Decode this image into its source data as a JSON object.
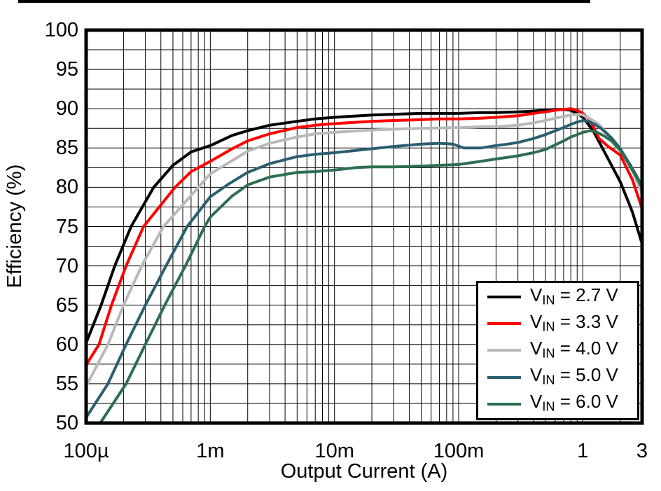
{
  "figure": {
    "xlabel": "Output Current (A)",
    "ylabel": "Efficiency (%)"
  },
  "chart_data": {
    "type": "line",
    "title": "",
    "xlabel": "Output Current (A)",
    "ylabel": "Efficiency (%)",
    "x_scale": "log",
    "xlim": [
      0.0001,
      3
    ],
    "ylim": [
      50,
      100
    ],
    "y_major_step": 5,
    "y_minor_step": 2.5,
    "grid": true,
    "frame_color": "#000000",
    "grid_color": "#000000",
    "legend_position": "bottom-right",
    "x_ticks": [
      {
        "value": 0.0001,
        "label": "100µ"
      },
      {
        "value": 0.001,
        "label": "1m"
      },
      {
        "value": 0.01,
        "label": "10m"
      },
      {
        "value": 0.1,
        "label": "100m"
      },
      {
        "value": 1,
        "label": "1"
      },
      {
        "value": 3,
        "label": "3"
      }
    ],
    "y_ticks": [
      100,
      95,
      90,
      85,
      80,
      75,
      70,
      65,
      60,
      55,
      50
    ],
    "series": [
      {
        "name": "VIN = 2.7 V",
        "label": {
          "pre": "V",
          "sub": "IN",
          "post": " = 2.7 V"
        },
        "color": "#000000",
        "points": [
          [
            0.0001,
            60.2
          ],
          [
            0.000132,
            65
          ],
          [
            0.00017,
            70
          ],
          [
            0.00023,
            75
          ],
          [
            0.00035,
            80
          ],
          [
            0.0005,
            82.8
          ],
          [
            0.0007,
            84.5
          ],
          [
            0.001,
            85.3
          ],
          [
            0.0015,
            86.6
          ],
          [
            0.002,
            87.2
          ],
          [
            0.003,
            87.9
          ],
          [
            0.005,
            88.4
          ],
          [
            0.007,
            88.7
          ],
          [
            0.01,
            88.9
          ],
          [
            0.02,
            89.2
          ],
          [
            0.03,
            89.3
          ],
          [
            0.05,
            89.4
          ],
          [
            0.07,
            89.4
          ],
          [
            0.1,
            89.4
          ],
          [
            0.15,
            89.5
          ],
          [
            0.2,
            89.5
          ],
          [
            0.3,
            89.6
          ],
          [
            0.4,
            89.7
          ],
          [
            0.5,
            89.8
          ],
          [
            0.6,
            89.9
          ],
          [
            0.7,
            89.9
          ],
          [
            0.8,
            89.8
          ],
          [
            0.9,
            89.4
          ],
          [
            1,
            88.9
          ],
          [
            1.2,
            87.3
          ],
          [
            1.35,
            85.8
          ],
          [
            1.6,
            83.6
          ],
          [
            2,
            80.7
          ],
          [
            2.5,
            76.9
          ],
          [
            3,
            72.8
          ]
        ]
      },
      {
        "name": "VIN = 3.3 V",
        "label": {
          "pre": "V",
          "sub": "IN",
          "post": " = 3.3 V"
        },
        "color": "#fe0000",
        "points": [
          [
            0.0001,
            57.4
          ],
          [
            0.000127,
            60
          ],
          [
            0.00016,
            65
          ],
          [
            0.00021,
            70
          ],
          [
            0.00029,
            75
          ],
          [
            0.00052,
            80
          ],
          [
            0.0007,
            82.0
          ],
          [
            0.001,
            83.3
          ],
          [
            0.0015,
            84.9
          ],
          [
            0.002,
            85.9
          ],
          [
            0.003,
            86.8
          ],
          [
            0.005,
            87.6
          ],
          [
            0.007,
            87.9
          ],
          [
            0.01,
            88.1
          ],
          [
            0.02,
            88.4
          ],
          [
            0.03,
            88.5
          ],
          [
            0.05,
            88.6
          ],
          [
            0.07,
            88.7
          ],
          [
            0.1,
            88.7
          ],
          [
            0.15,
            88.8
          ],
          [
            0.2,
            88.9
          ],
          [
            0.3,
            89.1
          ],
          [
            0.4,
            89.4
          ],
          [
            0.5,
            89.6
          ],
          [
            0.6,
            89.8
          ],
          [
            0.7,
            89.9
          ],
          [
            0.8,
            90.0
          ],
          [
            0.9,
            89.8
          ],
          [
            1,
            89.4
          ],
          [
            1.15,
            88.5
          ],
          [
            1.35,
            86.2
          ],
          [
            1.6,
            85.2
          ],
          [
            2,
            84.1
          ],
          [
            2.5,
            81.0
          ],
          [
            3,
            77.3
          ]
        ]
      },
      {
        "name": "VIN = 4.0 V",
        "label": {
          "pre": "V",
          "sub": "IN",
          "post": " = 4.0 V"
        },
        "color": "#b9b9b9",
        "points": [
          [
            0.0001,
            54.7
          ],
          [
            0.00015,
            60
          ],
          [
            0.0002,
            65
          ],
          [
            0.00028,
            70
          ],
          [
            0.00042,
            75
          ],
          [
            0.0008,
            80
          ],
          [
            0.001,
            81.7
          ],
          [
            0.0015,
            83.4
          ],
          [
            0.002,
            84.6
          ],
          [
            0.003,
            85.6
          ],
          [
            0.005,
            86.4
          ],
          [
            0.007,
            86.8
          ],
          [
            0.01,
            87.0
          ],
          [
            0.02,
            87.3
          ],
          [
            0.03,
            87.4
          ],
          [
            0.05,
            87.5
          ],
          [
            0.1,
            87.6
          ],
          [
            0.15,
            87.7
          ],
          [
            0.2,
            87.7
          ],
          [
            0.3,
            87.9
          ],
          [
            0.4,
            88.2
          ],
          [
            0.5,
            88.5
          ],
          [
            0.6,
            88.8
          ],
          [
            0.7,
            89.0
          ],
          [
            0.8,
            89.2
          ],
          [
            0.9,
            89.3
          ],
          [
            1,
            89.2
          ],
          [
            1.15,
            88.7
          ],
          [
            1.35,
            88.0
          ],
          [
            1.6,
            86.7
          ],
          [
            2,
            84.8
          ],
          [
            2.5,
            82.2
          ],
          [
            3,
            79.2
          ]
        ]
      },
      {
        "name": "VIN = 5.0 V",
        "label": {
          "pre": "V",
          "sub": "IN",
          "post": " = 5.0 V"
        },
        "color": "#2b5e71",
        "points": [
          [
            0.0001,
            50.7
          ],
          [
            0.00015,
            55
          ],
          [
            0.00021,
            60
          ],
          [
            0.0003,
            65
          ],
          [
            0.00044,
            70
          ],
          [
            0.00065,
            75
          ],
          [
            0.001,
            78.8
          ],
          [
            0.0014,
            80.4
          ],
          [
            0.002,
            81.9
          ],
          [
            0.003,
            83.0
          ],
          [
            0.005,
            83.9
          ],
          [
            0.007,
            84.2
          ],
          [
            0.01,
            84.4
          ],
          [
            0.015,
            84.7
          ],
          [
            0.02,
            84.9
          ],
          [
            0.03,
            85.2
          ],
          [
            0.05,
            85.5
          ],
          [
            0.07,
            85.6
          ],
          [
            0.09,
            85.5
          ],
          [
            0.11,
            85.0
          ],
          [
            0.15,
            85.0
          ],
          [
            0.2,
            85.3
          ],
          [
            0.25,
            85.5
          ],
          [
            0.3,
            85.7
          ],
          [
            0.4,
            86.2
          ],
          [
            0.5,
            86.7
          ],
          [
            0.6,
            87.2
          ],
          [
            0.7,
            87.6
          ],
          [
            0.8,
            88.0
          ],
          [
            0.9,
            88.3
          ],
          [
            1,
            88.5
          ],
          [
            1.1,
            88.4
          ],
          [
            1.25,
            88.0
          ],
          [
            1.4,
            87.5
          ],
          [
            1.7,
            86.3
          ],
          [
            2,
            84.9
          ],
          [
            2.4,
            82.9
          ],
          [
            2.7,
            81.5
          ],
          [
            3,
            80.1
          ]
        ]
      },
      {
        "name": "VIN = 6.0 V",
        "label": {
          "pre": "V",
          "sub": "IN",
          "post": " = 6.0 V"
        },
        "color": "#2e6e50",
        "points": [
          [
            0.00013,
            50
          ],
          [
            0.00021,
            55
          ],
          [
            0.0003,
            60
          ],
          [
            0.00043,
            65
          ],
          [
            0.00063,
            70
          ],
          [
            0.0009,
            75
          ],
          [
            0.001,
            76.2
          ],
          [
            0.0015,
            78.9
          ],
          [
            0.002,
            80.3
          ],
          [
            0.003,
            81.3
          ],
          [
            0.005,
            81.9
          ],
          [
            0.007,
            82.0
          ],
          [
            0.01,
            82.2
          ],
          [
            0.015,
            82.5
          ],
          [
            0.02,
            82.6
          ],
          [
            0.03,
            82.6
          ],
          [
            0.05,
            82.7
          ],
          [
            0.07,
            82.8
          ],
          [
            0.1,
            82.9
          ],
          [
            0.15,
            83.3
          ],
          [
            0.2,
            83.6
          ],
          [
            0.3,
            84.0
          ],
          [
            0.4,
            84.4
          ],
          [
            0.5,
            84.8
          ],
          [
            0.6,
            85.4
          ],
          [
            0.7,
            85.9
          ],
          [
            0.8,
            86.4
          ],
          [
            0.9,
            86.7
          ],
          [
            1,
            87.0
          ],
          [
            1.15,
            87.2
          ],
          [
            1.3,
            87.0
          ],
          [
            1.5,
            86.5
          ],
          [
            1.7,
            85.9
          ],
          [
            2,
            84.7
          ],
          [
            2.4,
            82.7
          ],
          [
            2.7,
            81.3
          ],
          [
            3,
            79.9
          ]
        ]
      }
    ]
  }
}
